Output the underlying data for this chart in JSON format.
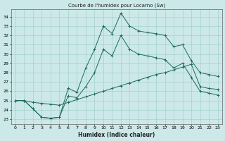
{
  "title": "Courbe de l'humidex pour Locarno (Sw)",
  "xlabel": "Humidex (Indice chaleur)",
  "bg_color": "#cce8e8",
  "line_color": "#1a6b5a",
  "grid_color": "#99cccc",
  "ylim": [
    22.5,
    34.8
  ],
  "xlim": [
    -0.5,
    23.5
  ],
  "yticks": [
    23,
    24,
    25,
    26,
    27,
    28,
    29,
    30,
    31,
    32,
    33,
    34
  ],
  "xticks": [
    0,
    1,
    2,
    3,
    4,
    5,
    6,
    7,
    8,
    9,
    10,
    11,
    12,
    13,
    14,
    15,
    16,
    17,
    18,
    19,
    20,
    21,
    22,
    23
  ],
  "line1_x": [
    0,
    1,
    2,
    3,
    4,
    5,
    6,
    7,
    8,
    9,
    10,
    11,
    12,
    13,
    14,
    15,
    16,
    17,
    18,
    19,
    20,
    21,
    22,
    23
  ],
  "line1_y": [
    25.0,
    25.0,
    24.8,
    24.7,
    24.6,
    24.5,
    24.8,
    25.1,
    25.4,
    25.7,
    26.0,
    26.3,
    26.6,
    26.9,
    27.2,
    27.5,
    27.8,
    28.0,
    28.3,
    28.6,
    28.9,
    26.5,
    26.3,
    26.2
  ],
  "line2_x": [
    0,
    1,
    2,
    3,
    4,
    5,
    6,
    7,
    8,
    9,
    10,
    11,
    12,
    13,
    14,
    15,
    16,
    17,
    18,
    19,
    20,
    21,
    22,
    23
  ],
  "line2_y": [
    25.0,
    25.0,
    24.1,
    23.2,
    23.1,
    23.2,
    26.3,
    25.9,
    28.5,
    30.5,
    33.0,
    32.2,
    34.4,
    33.0,
    32.5,
    32.3,
    32.2,
    32.0,
    30.8,
    31.0,
    29.3,
    28.0,
    27.8,
    27.6
  ],
  "line3_x": [
    0,
    1,
    2,
    3,
    4,
    5,
    6,
    7,
    8,
    9,
    10,
    11,
    12,
    13,
    14,
    15,
    16,
    17,
    18,
    19,
    20,
    21,
    22,
    23
  ],
  "line3_y": [
    25.0,
    25.0,
    24.1,
    23.2,
    23.1,
    23.2,
    25.5,
    25.3,
    26.5,
    28.0,
    30.5,
    29.8,
    32.0,
    30.5,
    30.0,
    29.8,
    29.6,
    29.4,
    28.5,
    29.0,
    27.5,
    26.0,
    25.8,
    25.6
  ]
}
